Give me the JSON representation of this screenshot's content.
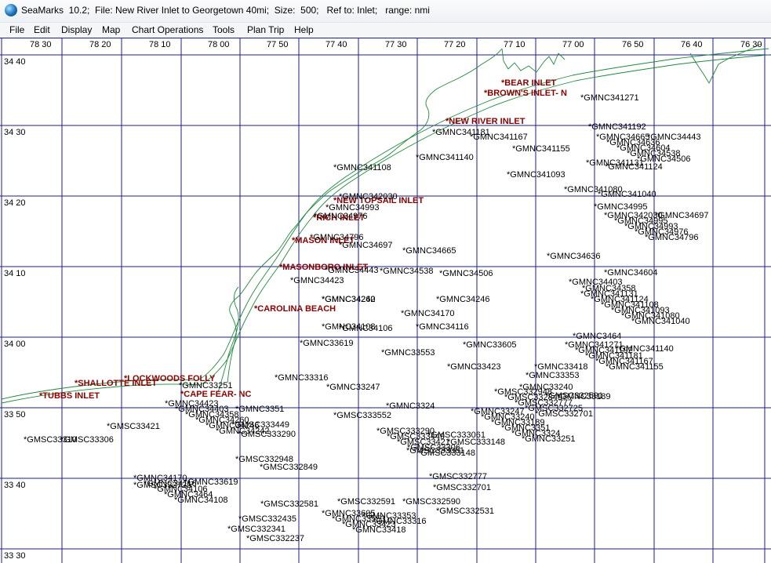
{
  "window": {
    "title": "SeaMarks  10.2;  File: New River Inlet to Georgetown 40mi;  Size:  500;   Ref to: Inlet;   range: nmi"
  },
  "menu": [
    "File",
    "Edit",
    "Display",
    "Map",
    "Chart Operations",
    "Tools",
    "Plan Trip",
    "Help"
  ],
  "map": {
    "grid_color": "#1e1e8c",
    "coast_color": "#1f8a3a",
    "inlet_color": "#8b0000",
    "buoy_color": "#000000",
    "lon_labels": [
      "78 30",
      "78 20",
      "78 10",
      "78 00",
      "77 50",
      "77 40",
      "77 30",
      "77 20",
      "77 10",
      "77 00",
      "76 50",
      "76 40",
      "76 30"
    ],
    "lat_labels": [
      "34 40",
      "34 30",
      "34 20",
      "34 10",
      "34 00",
      "33 50",
      "33 40",
      "33 30"
    ],
    "inlets": [
      "*NEW RIVER INLET",
      "*BEAR INLET",
      "*BROWN'S INLET- N",
      "*NEW TOPSAIL INLET",
      "*RICH INLET",
      "*MASON INLET",
      "*MASONBORO INLET",
      "*CAROLINA BEACH",
      "*LOCKWOODS FOLLY",
      "*SHALLOTTE INLET",
      "*TUBBS INLET",
      "*CAPE FEAR- NC"
    ],
    "marks": [
      "*GMNC341271",
      "*GMNC341192",
      "*GMNC341181",
      "*GMNC341167",
      "*GMNC341155",
      "*GMNC341140",
      "*GMNC341131",
      "*GMNC341124",
      "*GMNC341108",
      "*GMNC341093",
      "*GMNC341080",
      "*GMNC341040",
      "*GMNC342030",
      "*GMNC34995",
      "*GMNC34993",
      "*GMNC34976",
      "*GMNC34796",
      "*GMNC34697",
      "*GMNC34665",
      "*GMNC34636",
      "*GMNC34604",
      "*GMNC34538",
      "*GMNC34506",
      "*GMNC34443",
      "*GMNC34423",
      "*GMNC34403",
      "*GMNC34358",
      "*GMNC34260",
      "*GMNC34246",
      "*GMNC34242",
      "*GMNC34170",
      "*GMNC34116",
      "*GMNC34106",
      "*GMNC3464",
      "*GMNC34108",
      "*GMNC33619",
      "*GMNC33605",
      "*GMNC33553",
      "*GMNC33423",
      "*GMNC33418",
      "*GMNC33353",
      "*GMNC33316",
      "*GMNC33247",
      "*GMNC33240",
      "*GMNC33189",
      "*GMNC3351",
      "*GMNC3324",
      "*GMNC33251",
      "*GMSC333290",
      "*GMSC333449",
      "*GMSC33421",
      "*GMSC33306",
      "*GMSC333148",
      "*GMSC333061",
      "*GMSC332948",
      "*GMSC332849",
      "*GMSC332777",
      "*GMSC332725",
      "*GMSC332701",
      "*GMSC332591",
      "*GMSC332590",
      "*GMSC332581",
      "*GMSC332531",
      "*GMSC332435",
      "*GMSC332341",
      "*GMSC332237",
      "*GMSC333552",
      "*GMSC33310"
    ]
  }
}
